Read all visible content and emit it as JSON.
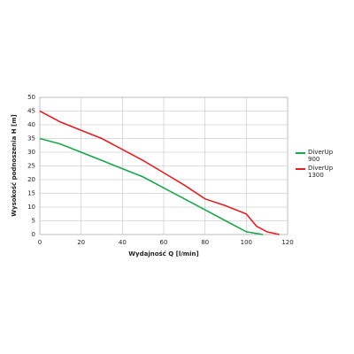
{
  "chart_data": {
    "type": "line",
    "x_label": "Wydajność Q [l/min]",
    "y_label": "Wysokość podnoszenia H [m]",
    "xlim": [
      0,
      120
    ],
    "xticks": [
      0,
      20,
      40,
      60,
      80,
      100,
      120
    ],
    "ylim": [
      0,
      50
    ],
    "yticks": [
      0,
      5,
      10,
      15,
      20,
      25,
      30,
      35,
      40,
      45,
      50
    ],
    "grid": true,
    "series": [
      {
        "name": "DiverUp 900",
        "color": "#1aa64a",
        "x": [
          0,
          10,
          20,
          30,
          40,
          50,
          60,
          70,
          80,
          90,
          100,
          108
        ],
        "values": [
          35,
          33,
          30,
          27,
          24,
          21,
          17,
          13,
          9,
          5,
          1,
          0
        ]
      },
      {
        "name": "DiverUp 1300",
        "color": "#e31e24",
        "x": [
          0,
          10,
          20,
          30,
          40,
          50,
          60,
          70,
          80,
          90,
          100,
          105,
          110,
          116
        ],
        "values": [
          45,
          41,
          38,
          35,
          31,
          27,
          22.5,
          18,
          13,
          10.5,
          7.5,
          3,
          1,
          0
        ]
      }
    ]
  }
}
